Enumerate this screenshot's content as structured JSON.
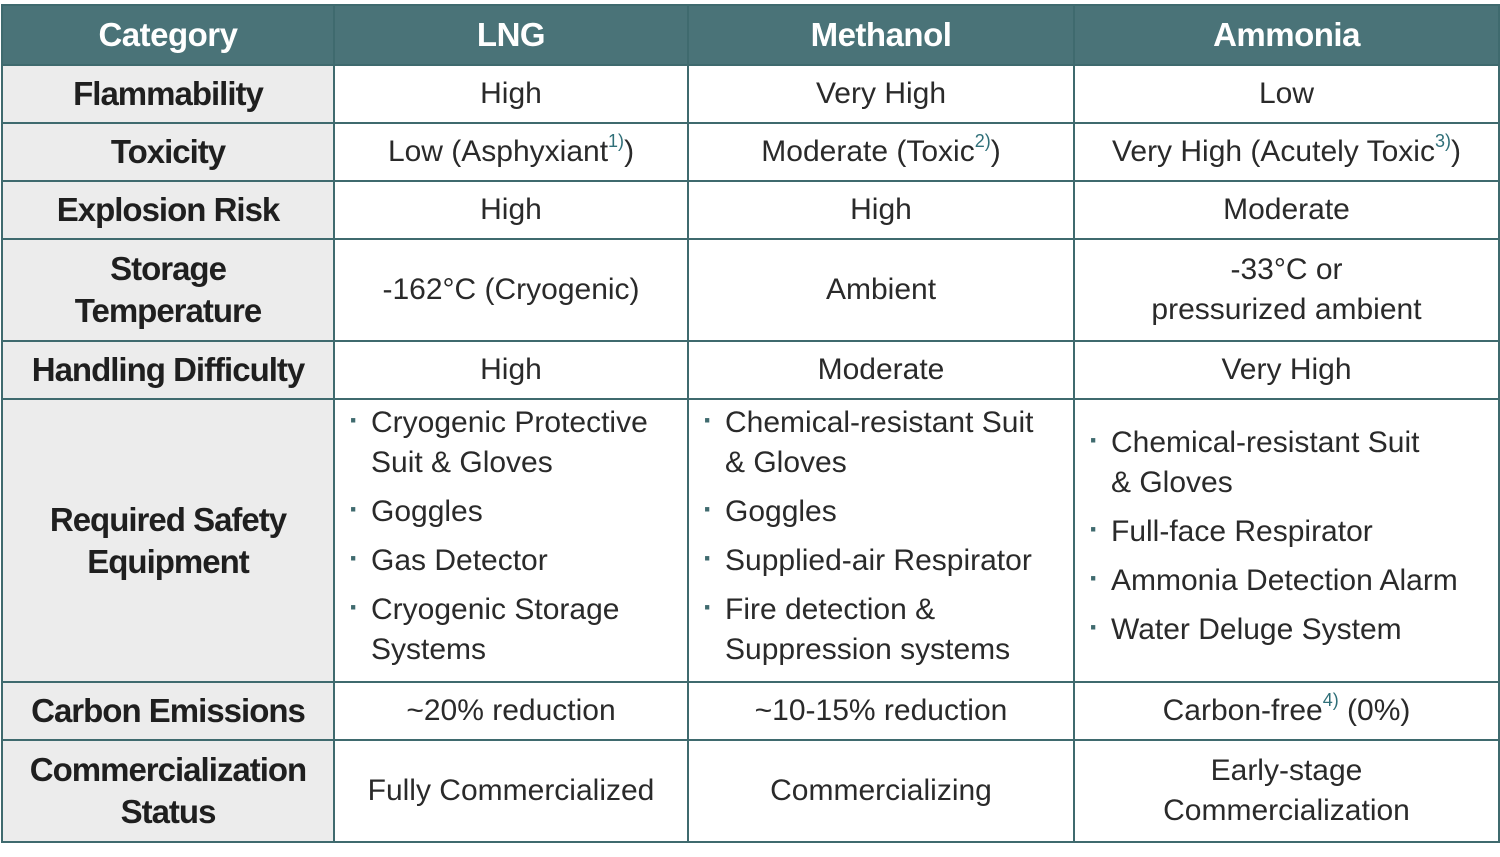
{
  "table": {
    "header": [
      "Category",
      "LNG",
      "Methanol",
      "Ammonia"
    ],
    "rows": [
      {
        "label": "Flammability",
        "cells": [
          "High",
          "Very High",
          "Low"
        ]
      },
      {
        "label": "Toxicity",
        "cells": [
          {
            "text": "Low (Asphyxiant",
            "note": "1)",
            "close": ")"
          },
          {
            "text": "Moderate (Toxic",
            "note": "2)",
            "close": ")"
          },
          {
            "text": "Very High (Acutely Toxic",
            "note": "3)",
            "close": ")"
          }
        ]
      },
      {
        "label": "Explosion Risk",
        "cells": [
          "High",
          "High",
          "Moderate"
        ]
      },
      {
        "label": [
          "Storage",
          "Temperature"
        ],
        "cells": [
          "-162°C (Cryogenic)",
          "Ambient",
          [
            "-33°C or",
            "pressurized ambient"
          ]
        ]
      },
      {
        "label": "Handling Difficulty",
        "cells": [
          "High",
          "Moderate",
          "Very High"
        ]
      },
      {
        "label": [
          "Required Safety",
          "Equipment"
        ],
        "cells": [
          {
            "items": [
              [
                "Cryogenic Protective",
                "Suit & Gloves"
              ],
              [
                "Goggles"
              ],
              [
                "Gas Detector"
              ],
              [
                "Cryogenic Storage",
                "Systems"
              ]
            ]
          },
          {
            "items": [
              [
                "Chemical-resistant Suit",
                "& Gloves"
              ],
              [
                "Goggles"
              ],
              [
                "Supplied-air Respirator"
              ],
              [
                "Fire detection &",
                "Suppression systems"
              ]
            ]
          },
          {
            "items": [
              [
                "Chemical-resistant Suit",
                "& Gloves"
              ],
              [
                "Full-face Respirator"
              ],
              [
                "Ammonia Detection Alarm"
              ],
              [
                "Water Deluge System"
              ]
            ]
          }
        ]
      },
      {
        "label": "Carbon Emissions",
        "cells": [
          "~20% reduction",
          "~10-15% reduction",
          {
            "text": "Carbon-free",
            "note": "4)",
            "close": " (0%)"
          }
        ]
      },
      {
        "label": [
          "Commercialization",
          "Status"
        ],
        "cells": [
          "Fully Commercialized",
          "Commercializing",
          [
            "Early-stage",
            "Commercialization"
          ]
        ]
      }
    ]
  }
}
